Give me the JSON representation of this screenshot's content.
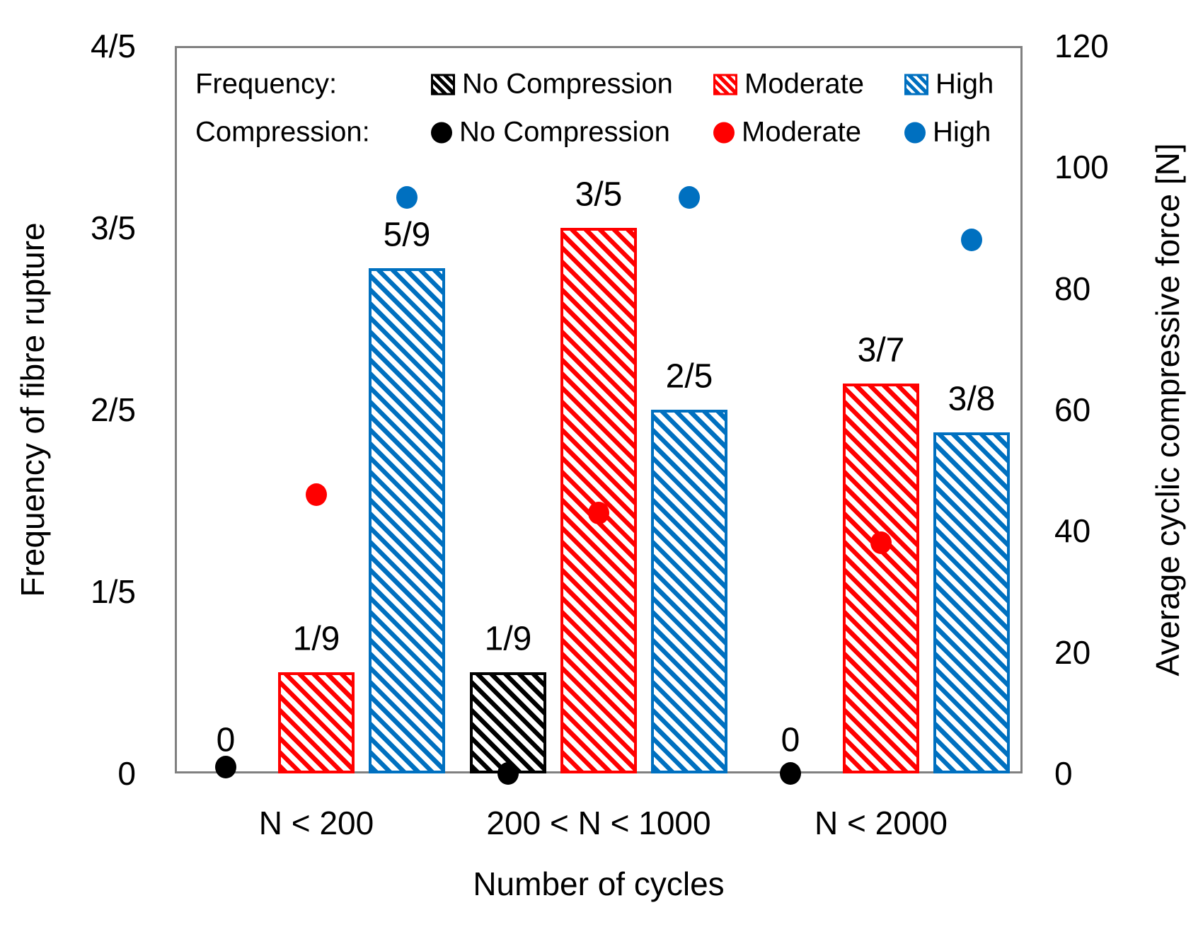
{
  "legend": {
    "row1_label": "Frequency:",
    "row2_label": "Compression:",
    "bar_items": [
      {
        "label": "No Compression",
        "color": "#000000"
      },
      {
        "label": "Moderate",
        "color": "#FF0000"
      },
      {
        "label": "High",
        "color": "#0070C0"
      }
    ],
    "dot_items": [
      {
        "label": "No Compression",
        "color": "#000000"
      },
      {
        "label": "Moderate",
        "color": "#FF0000"
      },
      {
        "label": "High",
        "color": "#0070C0"
      }
    ]
  },
  "chart_data": {
    "type": "bar",
    "overlay": "scatter",
    "dual_axis": true,
    "grid": false,
    "categories": [
      "N < 200",
      "200 < N < 1000",
      "N < 2000"
    ],
    "xlabel": "Number of cycles",
    "left_axis": {
      "label": "Frequency of fibre rupture",
      "tick_labels": [
        "0",
        "1/5",
        "2/5",
        "3/5",
        "4/5"
      ],
      "range": [
        0,
        0.8
      ]
    },
    "right_axis": {
      "label": "Average cyclic compressive force [N]",
      "tick_labels": [
        "0",
        "20",
        "40",
        "60",
        "80",
        "100",
        "120"
      ],
      "range": [
        0,
        120
      ]
    },
    "bar_series": [
      {
        "name": "No Compression",
        "color": "#000000",
        "values": [
          0,
          0.1111,
          0
        ],
        "value_labels": [
          "0",
          "1/9",
          "0"
        ]
      },
      {
        "name": "Moderate",
        "color": "#FF0000",
        "values": [
          0.1111,
          0.6,
          0.4286
        ],
        "value_labels": [
          "1/9",
          "3/5",
          "3/7"
        ]
      },
      {
        "name": "High",
        "color": "#0070C0",
        "values": [
          0.5556,
          0.4,
          0.375
        ],
        "value_labels": [
          "5/9",
          "2/5",
          "3/8"
        ]
      }
    ],
    "scatter_series": [
      {
        "name": "No Compression",
        "color": "#000000",
        "values": [
          1,
          0,
          0
        ]
      },
      {
        "name": "Moderate",
        "color": "#FF0000",
        "values": [
          46,
          43,
          38
        ]
      },
      {
        "name": "High",
        "color": "#0070C0",
        "values": [
          95,
          95,
          88
        ]
      }
    ]
  }
}
